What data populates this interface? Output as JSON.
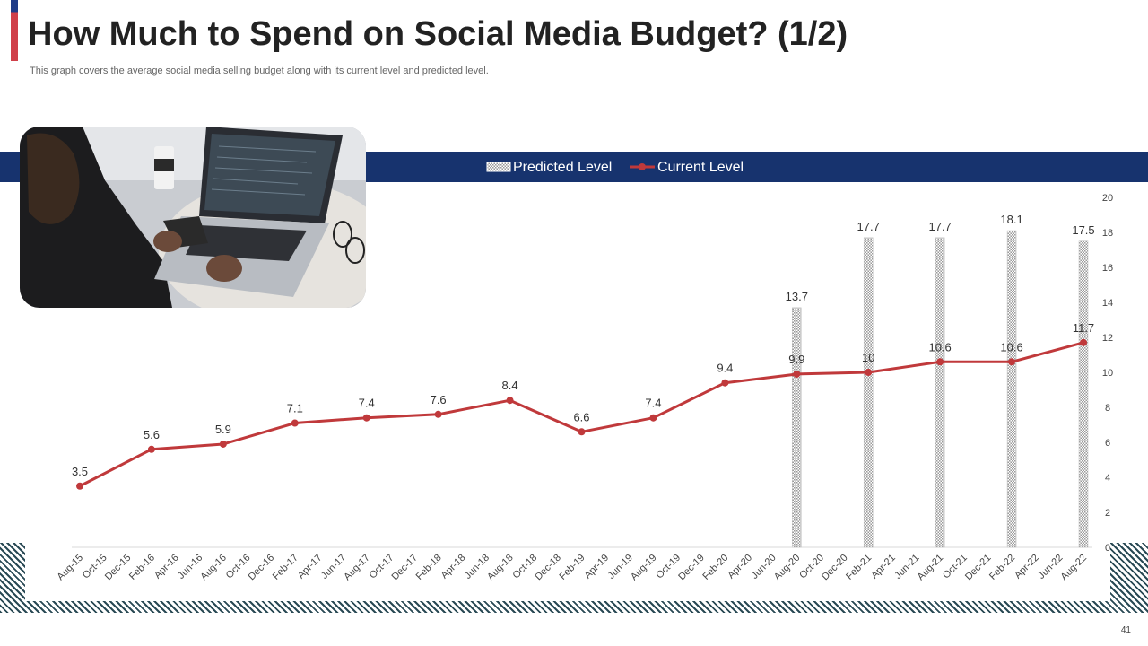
{
  "header": {
    "title": "How Much to Spend on Social Media Budget? (1/2)",
    "subtitle": "This graph covers the average social media selling budget along with its current level and predicted level."
  },
  "page_number": "41",
  "colors": {
    "accent_blue": "#17336e",
    "accent_red": "#d0404a",
    "line_red": "#c0393b",
    "hatch": "#2a4a55"
  },
  "photo": {
    "icon": "person-with-laptop-photo"
  },
  "chart_data": {
    "type": "line",
    "title": "",
    "xlabel": "",
    "ylabel": "",
    "ylim": [
      0,
      20
    ],
    "yticks": [
      0,
      2,
      4,
      6,
      8,
      10,
      12,
      14,
      16,
      18,
      20
    ],
    "y_axis_position": "right",
    "legend": {
      "placement": "top-center",
      "entries": [
        "Predicted Level",
        "Current Level"
      ]
    },
    "grid": false,
    "categories": [
      "Aug-15",
      "Oct-15",
      "Dec-15",
      "Feb-16",
      "Apr-16",
      "Jun-16",
      "Aug-16",
      "Oct-16",
      "Dec-16",
      "Feb-17",
      "Apr-17",
      "Jun-17",
      "Aug-17",
      "Oct-17",
      "Dec-17",
      "Feb-18",
      "Apr-18",
      "Jun-18",
      "Aug-18",
      "Oct-18",
      "Dec-18",
      "Feb-19",
      "Apr-19",
      "Jun-19",
      "Aug-19",
      "Oct-19",
      "Dec-19",
      "Feb-20",
      "Apr-20",
      "Jun-20",
      "Aug-20",
      "Oct-20",
      "Dec-20",
      "Feb-21",
      "Apr-21",
      "Jun-21",
      "Aug-21",
      "Oct-21",
      "Dec-21",
      "Feb-22",
      "Apr-22",
      "Jun-22",
      "Aug-22"
    ],
    "series": [
      {
        "name": "Current Level",
        "type": "line",
        "color": "#c0393b",
        "points": [
          {
            "x": "Aug-15",
            "y": 3.5,
            "label": "3.5"
          },
          {
            "x": "Feb-16",
            "y": 5.6,
            "label": "5.6"
          },
          {
            "x": "Aug-16",
            "y": 5.9,
            "label": "5.9"
          },
          {
            "x": "Feb-17",
            "y": 7.1,
            "label": "7.1"
          },
          {
            "x": "Aug-17",
            "y": 7.4,
            "label": "7.4"
          },
          {
            "x": "Feb-18",
            "y": 7.6,
            "label": "7.6"
          },
          {
            "x": "Aug-18",
            "y": 8.4,
            "label": "8.4"
          },
          {
            "x": "Feb-19",
            "y": 6.6,
            "label": "6.6"
          },
          {
            "x": "Aug-19",
            "y": 7.4,
            "label": "7.4"
          },
          {
            "x": "Feb-20",
            "y": 9.4,
            "label": "9.4"
          },
          {
            "x": "Aug-20",
            "y": 9.9,
            "label": "9.9"
          },
          {
            "x": "Feb-21",
            "y": 10.0,
            "label": "10"
          },
          {
            "x": "Aug-21",
            "y": 10.6,
            "label": "10.6"
          },
          {
            "x": "Feb-22",
            "y": 10.6,
            "label": "10.6"
          },
          {
            "x": "Aug-22",
            "y": 11.7,
            "label": "11.7"
          }
        ]
      },
      {
        "name": "Predicted Level",
        "type": "bar",
        "color": "#cccccc",
        "points": [
          {
            "x": "Aug-20",
            "y": 13.7,
            "label": "13.7"
          },
          {
            "x": "Feb-21",
            "y": 17.7,
            "label": "17.7"
          },
          {
            "x": "Aug-21",
            "y": 17.7,
            "label": "17.7"
          },
          {
            "x": "Feb-22",
            "y": 18.1,
            "label": "18.1"
          },
          {
            "x": "Aug-22",
            "y": 17.5,
            "label": "17.5"
          }
        ]
      }
    ]
  }
}
